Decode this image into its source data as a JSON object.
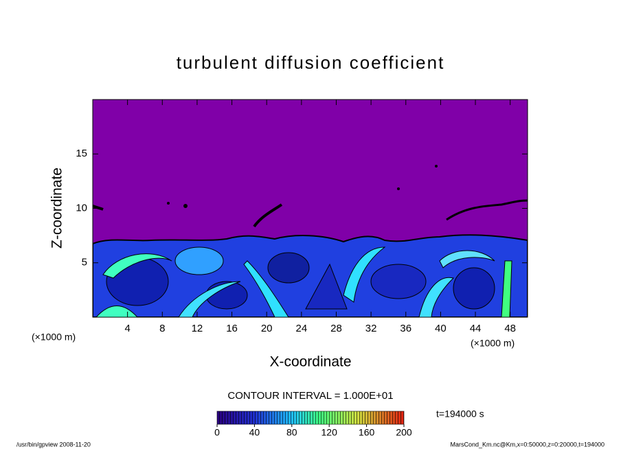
{
  "chart_data": {
    "type": "contour",
    "title": "turbulent diffusion coefficient",
    "xlabel": "X-coordinate",
    "ylabel": "Z-coordinate",
    "x_unit_label": "(×1000 m)",
    "xlim": [
      0,
      50
    ],
    "xticks": [
      4,
      8,
      12,
      16,
      20,
      24,
      28,
      32,
      36,
      40,
      44,
      48
    ],
    "ylim": [
      0,
      20
    ],
    "yticks": [
      5,
      10,
      15
    ],
    "contour_interval_label": "CONTOUR INTERVAL = 1.000E+01",
    "time_label": "t=194000 s",
    "colorbar": {
      "lim": [
        0,
        200
      ],
      "ticks": [
        0,
        40,
        80,
        120,
        160,
        200
      ]
    },
    "footer_left": "/usr/bin/gpview   2008-11-20",
    "footer_right": "MarsCond_Km.nc@Km,x=0:50000,z=0:20000,t=194000"
  }
}
